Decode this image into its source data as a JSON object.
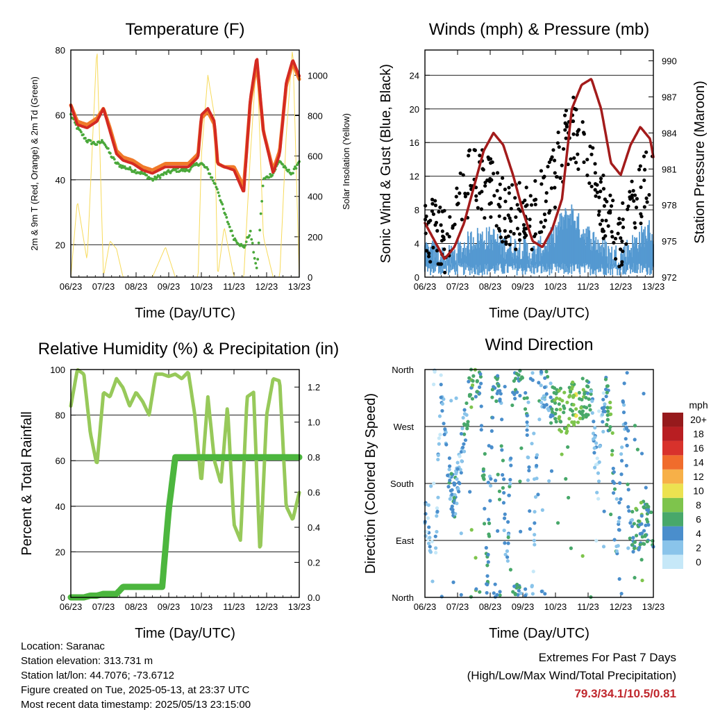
{
  "info": {
    "location": "Location: Saranac",
    "elevation": "Station elevation: 313.731 m",
    "latlon": "Station lat/lon: 44.7076; -73.6712",
    "created": "Figure created on Tue, 2025-05-13, at 23:37 UTC",
    "recent": "Most recent data timestamp: 2025/05/13 23:15:00"
  },
  "extremes": {
    "title": "Extremes For Past 7 Days",
    "subtitle": "(High/Low/Max Wind/Total Precipitation)",
    "values": "79.3/34.1/10.5/0.81"
  },
  "colors": {
    "temp2m": "#d42a22",
    "temp9m": "#f07a2a",
    "dewpoint": "#4aa83a",
    "solar": "#f7da5a",
    "wind": "#5499d1",
    "gust": "#000000",
    "pressure": "#a31b1b",
    "rh": "#97c95a",
    "precip": "#4cb63e"
  },
  "chart_data": [
    {
      "type": "line",
      "title": "Temperature (F)",
      "xlabel": "Time (Day/UTC)",
      "ylabel": "2m & 9m T (Red, Orange) & 2m Td (Green)",
      "ylabel_right": "Solar Insolation (Yellow)",
      "x_ticks": [
        "06/23",
        "07/23",
        "08/23",
        "09/23",
        "10/23",
        "11/23",
        "12/23",
        "13/23"
      ],
      "ylim": [
        10,
        80
      ],
      "ylim_right": [
        0,
        1125
      ],
      "y_ticks": [
        "20",
        "40",
        "60",
        "80"
      ],
      "y_ticks_right": [
        "0",
        "200",
        "400",
        "600",
        "800",
        "1000"
      ],
      "x": [
        6.0,
        6.2,
        6.5,
        6.8,
        7.0,
        7.2,
        7.4,
        7.6,
        7.9,
        8.2,
        8.5,
        8.9,
        9.2,
        9.6,
        9.9,
        10.0,
        10.2,
        10.4,
        10.5,
        10.7,
        11.0,
        11.3,
        11.5,
        11.7,
        11.9,
        12.2,
        12.4,
        12.6,
        12.8,
        13.0
      ],
      "series": [
        {
          "name": "2m T",
          "values": [
            63,
            57,
            56,
            58,
            62,
            55,
            48,
            46,
            45,
            43,
            42,
            44,
            44,
            44,
            47,
            60,
            62,
            58,
            45,
            44,
            43,
            36,
            65,
            78,
            55,
            42,
            48,
            70,
            77,
            72
          ]
        },
        {
          "name": "9m T",
          "values": [
            63,
            58,
            57,
            59,
            62,
            56,
            49,
            47,
            46,
            44,
            43,
            45,
            45,
            45,
            48,
            59,
            61,
            57,
            45,
            44,
            44,
            38,
            64,
            76,
            55,
            43,
            49,
            69,
            76,
            71
          ]
        },
        {
          "name": "2m Td",
          "values": [
            60,
            56,
            52,
            51,
            52,
            48,
            45,
            44,
            43,
            42,
            40,
            42,
            43,
            43,
            45,
            45,
            43,
            39,
            37,
            30,
            22,
            19,
            24,
            12,
            40,
            42,
            46,
            43,
            42,
            46
          ]
        },
        {
          "name": "Solar",
          "values": [
            0,
            380,
            80,
            1150,
            0,
            180,
            140,
            0,
            0,
            0,
            0,
            150,
            0,
            0,
            0,
            600,
            1000,
            800,
            0,
            250,
            0,
            0,
            600,
            1100,
            200,
            0,
            0,
            700,
            1150,
            0
          ]
        }
      ]
    },
    {
      "type": "scatter",
      "title": "Winds (mph) & Pressure (mb)",
      "xlabel": "Time (Day/UTC)",
      "ylabel": "Sonic Wind & Gust (Blue, Black)",
      "ylabel_right": "Station Pressure (Maroon)",
      "x_ticks": [
        "06/23",
        "07/23",
        "08/23",
        "09/23",
        "10/23",
        "11/23",
        "12/23",
        "13/23"
      ],
      "ylim": [
        0,
        27
      ],
      "ylim_right": [
        972,
        990.9
      ],
      "y_ticks": [
        "0",
        "4",
        "8",
        "12",
        "16",
        "20",
        "24"
      ],
      "y_ticks_right": [
        "972",
        "975",
        "978",
        "981",
        "984",
        "987",
        "990"
      ],
      "x": [
        6.0,
        6.3,
        6.6,
        6.9,
        7.2,
        7.5,
        7.8,
        8.1,
        8.4,
        8.7,
        9.0,
        9.3,
        9.6,
        9.9,
        10.2,
        10.5,
        10.8,
        11.1,
        11.4,
        11.7,
        12.0,
        12.3,
        12.6,
        12.9,
        13.0
      ],
      "series": [
        {
          "name": "Sonic Wind",
          "values": [
            2,
            2.5,
            1.5,
            2,
            3,
            4,
            4,
            4,
            3,
            3,
            3,
            2,
            3,
            4,
            6,
            7,
            5,
            4,
            3,
            2,
            2,
            3,
            4,
            5,
            4
          ]
        },
        {
          "name": "Gust",
          "values": [
            5,
            6,
            4,
            7,
            10,
            12,
            11,
            10,
            8,
            7,
            8,
            7,
            9,
            11,
            15,
            18,
            16,
            12,
            9,
            6,
            5,
            7,
            10,
            12,
            10
          ]
        },
        {
          "name": "Station Pressure",
          "values": [
            976.5,
            975.0,
            973.5,
            974.5,
            976.5,
            979.5,
            982.5,
            984.0,
            983.0,
            980.5,
            977.5,
            975.0,
            974.5,
            976.0,
            978.5,
            986.0,
            988.0,
            988.5,
            986.0,
            981.5,
            980.5,
            983.0,
            984.5,
            983.5,
            982.0
          ]
        }
      ]
    },
    {
      "type": "line",
      "title": "Relative Humidity (%) & Precipitation (in)",
      "xlabel": "Time (Day/UTC)",
      "ylabel": "Percent & Total Rainfall",
      "x_ticks": [
        "06/23",
        "07/23",
        "08/23",
        "09/23",
        "10/23",
        "11/23",
        "12/23",
        "13/23"
      ],
      "ylim": [
        0,
        100
      ],
      "ylim_right": [
        0,
        1.3
      ],
      "y_ticks": [
        "0",
        "20",
        "40",
        "60",
        "80",
        "100"
      ],
      "y_ticks_right": [
        "0.0",
        "0.2",
        "0.4",
        "0.6",
        "0.8",
        "1.0",
        "1.2"
      ],
      "x": [
        6.0,
        6.2,
        6.4,
        6.6,
        6.8,
        7.0,
        7.2,
        7.4,
        7.6,
        7.8,
        8.0,
        8.2,
        8.4,
        8.6,
        8.8,
        9.0,
        9.2,
        9.4,
        9.6,
        9.8,
        10.0,
        10.2,
        10.4,
        10.6,
        10.8,
        11.0,
        11.2,
        11.4,
        11.6,
        11.8,
        12.0,
        12.2,
        12.4,
        12.6,
        12.8,
        13.0
      ],
      "series": [
        {
          "name": "Relative Humidity",
          "values": [
            84,
            100,
            98,
            72,
            58,
            90,
            88,
            96,
            92,
            84,
            90,
            86,
            80,
            98,
            98,
            97,
            98,
            96,
            99,
            80,
            50,
            88,
            60,
            50,
            84,
            32,
            25,
            88,
            90,
            18,
            80,
            96,
            95,
            40,
            34,
            46
          ]
        },
        {
          "name": "Total Precipitation",
          "values": [
            0,
            0,
            0,
            0.01,
            0.01,
            0.02,
            0.02,
            0.02,
            0.06,
            0.06,
            0.06,
            0.06,
            0.06,
            0.06,
            0.06,
            0.5,
            0.8,
            0.8,
            0.8,
            0.8,
            0.8,
            0.8,
            0.8,
            0.8,
            0.8,
            0.8,
            0.8,
            0.8,
            0.8,
            0.8,
            0.8,
            0.8,
            0.8,
            0.8,
            0.8,
            0.8
          ]
        }
      ]
    },
    {
      "type": "scatter",
      "title": "Wind Direction",
      "xlabel": "Time (Day/UTC)",
      "ylabel": "Direction (Colored By Speed)",
      "x_ticks": [
        "06/23",
        "07/23",
        "08/23",
        "09/23",
        "10/23",
        "11/23",
        "12/23",
        "13/23"
      ],
      "y_categories": [
        "North",
        "East",
        "South",
        "West",
        "North"
      ],
      "ylim": [
        0,
        360
      ],
      "colorbar_title": "mph",
      "colorbar_labels": [
        "0",
        "2",
        "4",
        "6",
        "8",
        "10",
        "12",
        "14",
        "16",
        "18",
        "20+"
      ],
      "colorbar_colors": [
        "#c6e8f8",
        "#8ac4ea",
        "#4a8ecc",
        "#48a86a",
        "#7ec44c",
        "#ece250",
        "#f7b048",
        "#f06c2c",
        "#d8322c",
        "#b81e22",
        "#961a1c"
      ],
      "x": [
        6.1,
        6.3,
        6.5,
        6.7,
        6.9,
        7.1,
        7.3,
        7.5,
        7.7,
        7.9,
        8.1,
        8.3,
        8.5,
        8.7,
        8.9,
        9.1,
        9.3,
        9.5,
        9.7,
        9.9,
        10.1,
        10.3,
        10.5,
        10.7,
        10.9,
        11.1,
        11.3,
        11.5,
        11.7,
        11.9,
        12.1,
        12.3,
        12.5,
        12.7,
        12.9
      ],
      "series": [
        {
          "name": "Direction",
          "values": [
            120,
            30,
            340,
            200,
            150,
            220,
            300,
            350,
            345,
            10,
            350,
            345,
            20,
            350,
            345,
            340,
            10,
            340,
            330,
            300,
            300,
            290,
            310,
            300,
            320,
            300,
            180,
            320,
            280,
            60,
            320,
            100,
            110,
            120,
            110
          ]
        },
        {
          "name": "Speed",
          "values": [
            2,
            1,
            2,
            3,
            4,
            2,
            5,
            6,
            5,
            4,
            5,
            5,
            3,
            5,
            5,
            4,
            2,
            4,
            3,
            5,
            7,
            6,
            8,
            8,
            6,
            4,
            1,
            3,
            7,
            3,
            3,
            4,
            6,
            6,
            5
          ]
        }
      ]
    }
  ]
}
